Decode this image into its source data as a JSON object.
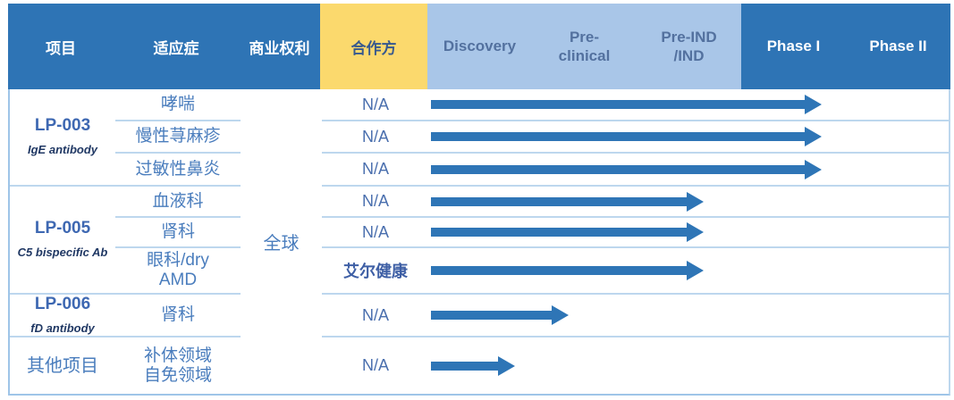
{
  "header": {
    "project_label": "项目",
    "indication_label": "适应症",
    "rights_label": "商业权利",
    "partner_label": "合作方",
    "stages": [
      {
        "label": "Discovery",
        "group": "early"
      },
      {
        "label": "Pre-\nclinical",
        "group": "early"
      },
      {
        "label": "Pre-IND\n/IND",
        "group": "early"
      },
      {
        "label": "Phase I",
        "group": "late"
      },
      {
        "label": "Phase II",
        "group": "late"
      }
    ]
  },
  "commercial_rights_value": "全球",
  "projects": [
    {
      "name": "LP-003",
      "subtitle": "IgE antibody",
      "rows": [
        {
          "indication": "哮喘",
          "partner": "N/A",
          "stage_reached": "Phase I",
          "arrow_end_pct": 75.2
        },
        {
          "indication": "慢性荨麻疹",
          "partner": "N/A",
          "stage_reached": "Phase I",
          "arrow_end_pct": 75.2
        },
        {
          "indication": "过敏性鼻炎",
          "partner": "N/A",
          "stage_reached": "Phase I",
          "arrow_end_pct": 75.2
        }
      ]
    },
    {
      "name": "LP-005",
      "subtitle": "C5 bispecific Ab",
      "rows": [
        {
          "indication": "血液科",
          "partner": "N/A",
          "stage_reached": "Pre-IND/IND",
          "arrow_end_pct": 52.5
        },
        {
          "indication": "肾科",
          "partner": "N/A",
          "stage_reached": "Pre-IND/IND",
          "arrow_end_pct": 52.5
        },
        {
          "indication": "眼科/dry\nAMD",
          "partner": "艾尔健康",
          "stage_reached": "Pre-IND/IND",
          "arrow_end_pct": 52.5
        }
      ]
    },
    {
      "name": "LP-006",
      "subtitle": "fD antibody",
      "rows": [
        {
          "indication": "肾科",
          "partner": "N/A",
          "stage_reached": "Pre-clinical",
          "arrow_end_pct": 26.5
        }
      ]
    },
    {
      "name": "其他项目",
      "subtitle": "",
      "rows": [
        {
          "indication": "补体领域\n自免领域",
          "partner": "N/A",
          "stage_reached": "Discovery",
          "arrow_end_pct": 16.2
        }
      ]
    }
  ],
  "colors": {
    "header_dark_blue": "#2e74b5",
    "header_yellow": "#fbd96d",
    "header_light_blue": "#a9c6e8",
    "stage_early_text": "#53719f",
    "arrow_blue": "#2e75b6",
    "row_line_blue": "#bdd7ee",
    "project_name_blue": "#3e68b2",
    "project_subtitle_navy": "#203864",
    "body_text_blue": "#4a7dbd",
    "partner_text_blue": "#4a6fae"
  },
  "chart_data": {
    "type": "table",
    "title": "药物研发管线进度 (drug pipeline progress)",
    "stage_columns": [
      "Discovery",
      "Pre-clinical",
      "Pre-IND/IND",
      "Phase I",
      "Phase II"
    ],
    "legend_position": "none",
    "rows": [
      {
        "project": "LP-003",
        "project_type": "IgE antibody",
        "indication": "哮喘",
        "commercial_rights": "全球",
        "partner": "N/A",
        "stage_reached": "Phase I",
        "progress_pct": 75
      },
      {
        "project": "LP-003",
        "project_type": "IgE antibody",
        "indication": "慢性荨麻疹",
        "commercial_rights": "全球",
        "partner": "N/A",
        "stage_reached": "Phase I",
        "progress_pct": 75
      },
      {
        "project": "LP-003",
        "project_type": "IgE antibody",
        "indication": "过敏性鼻炎",
        "commercial_rights": "全球",
        "partner": "N/A",
        "stage_reached": "Phase I",
        "progress_pct": 75
      },
      {
        "project": "LP-005",
        "project_type": "C5 bispecific Ab",
        "indication": "血液科",
        "commercial_rights": "全球",
        "partner": "N/A",
        "stage_reached": "Pre-IND/IND",
        "progress_pct": 53
      },
      {
        "project": "LP-005",
        "project_type": "C5 bispecific Ab",
        "indication": "肾科",
        "commercial_rights": "全球",
        "partner": "N/A",
        "stage_reached": "Pre-IND/IND",
        "progress_pct": 53
      },
      {
        "project": "LP-005",
        "project_type": "C5 bispecific Ab",
        "indication": "眼科/dry AMD",
        "commercial_rights": "全球",
        "partner": "艾尔健康",
        "stage_reached": "Pre-IND/IND",
        "progress_pct": 53
      },
      {
        "project": "LP-006",
        "project_type": "fD antibody",
        "indication": "肾科",
        "commercial_rights": "全球",
        "partner": "N/A",
        "stage_reached": "Pre-clinical",
        "progress_pct": 27
      },
      {
        "project": "其他项目",
        "project_type": "",
        "indication": "补体领域 自免领域",
        "commercial_rights": "全球",
        "partner": "N/A",
        "stage_reached": "Discovery",
        "progress_pct": 16
      }
    ]
  }
}
